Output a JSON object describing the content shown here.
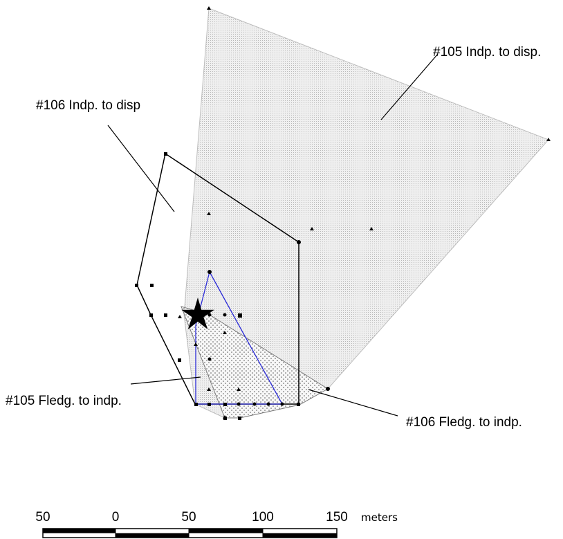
{
  "labels": {
    "ind105": "#105 Indp. to disp.",
    "ind106": "#106 Indp. to disp",
    "fledg105": "#105 Fledg. to indp.",
    "fledg106": "#106 Fledg. to indp."
  },
  "scale_bar": {
    "ticks": [
      "50",
      "0",
      "50",
      "100",
      "150"
    ],
    "unit": "meters"
  },
  "colors": {
    "ind105_fill": "#e6e6e6",
    "fledg105_outline": "#2c2cd8",
    "outline": "#000000",
    "nest_star": "#000000"
  }
}
